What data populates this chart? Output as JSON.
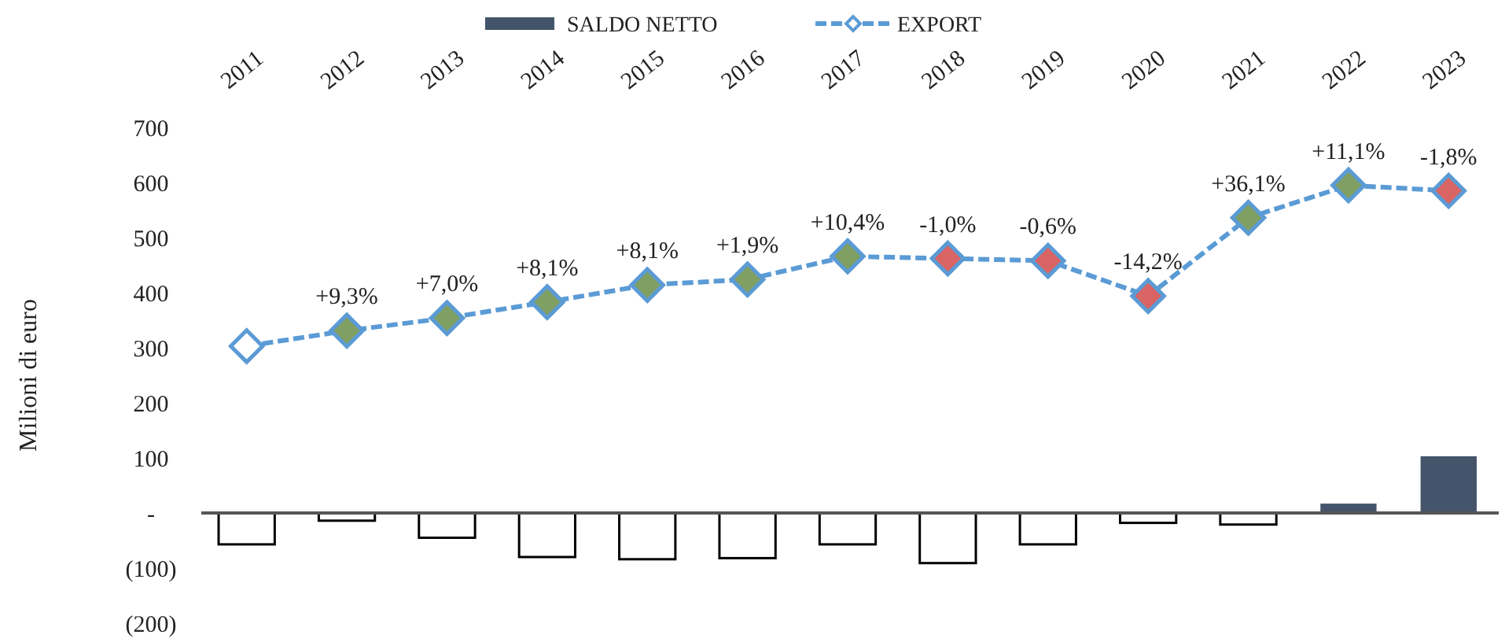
{
  "chart_data": {
    "type": "bar",
    "ylabel": "Milioni di euro",
    "categories": [
      "2011",
      "2012",
      "2013",
      "2014",
      "2015",
      "2016",
      "2017",
      "2018",
      "2019",
      "2020",
      "2021",
      "2022",
      "2023"
    ],
    "series": [
      {
        "name": "SALDO NETTO",
        "color": "#44546a",
        "colors": [
          "#ffffff",
          "#ffffff",
          "#ffffff",
          "#ffffff",
          "#ffffff",
          "#ffffff",
          "#ffffff",
          "#ffffff",
          "#ffffff",
          "#ffffff",
          "#ffffff",
          "#44546a",
          "#44546a"
        ],
        "values": [
          -57,
          -14,
          -45,
          -80,
          -84,
          -82,
          -57,
          -91,
          -57,
          -18,
          -21,
          17,
          103
        ]
      },
      {
        "name": "EXPORT",
        "type": "line",
        "color": "#5b9bd5",
        "marker": "diamond",
        "line_style": "dashed",
        "colors": [
          "#ffffff",
          "#7f9f63",
          "#7f9f63",
          "#7f9f63",
          "#7f9f63",
          "#7f9f63",
          "#7f9f63",
          "#d96464",
          "#d96464",
          "#d96464",
          "#7f9f63",
          "#7f9f63",
          "#d96464"
        ],
        "values": [
          303,
          331,
          354,
          383,
          414,
          424,
          466,
          462,
          458,
          394,
          536,
          595,
          585
        ]
      }
    ],
    "annotations": [
      {
        "text": "+9,3%",
        "x": "2012",
        "y": 331
      },
      {
        "text": "+7,0%",
        "x": "2013",
        "y": 354
      },
      {
        "text": "+8,1%",
        "x": "2014",
        "y": 383
      },
      {
        "text": "+8,1%",
        "x": "2015",
        "y": 414
      },
      {
        "text": "+1,9%",
        "x": "2016",
        "y": 424
      },
      {
        "text": "+10,4%",
        "x": "2017",
        "y": 466
      },
      {
        "text": "-1,0%",
        "x": "2018",
        "y": 462
      },
      {
        "text": "-0,6%",
        "x": "2019",
        "y": 458
      },
      {
        "text": "-14,2%",
        "x": "2020",
        "y": 394
      },
      {
        "text": "+36,1%",
        "x": "2021",
        "y": 536
      },
      {
        "text": "+11,1%",
        "x": "2022",
        "y": 595
      },
      {
        "text": "-1,8%",
        "x": "2023",
        "y": 585
      }
    ],
    "ylim": [
      -200,
      700
    ],
    "yticks": [
      {
        "value": -200,
        "label": "(200)"
      },
      {
        "value": -100,
        "label": "(100)"
      },
      {
        "value": 0,
        "label": "-"
      },
      100,
      200,
      300,
      400,
      500,
      600,
      700
    ],
    "legend": "top"
  }
}
